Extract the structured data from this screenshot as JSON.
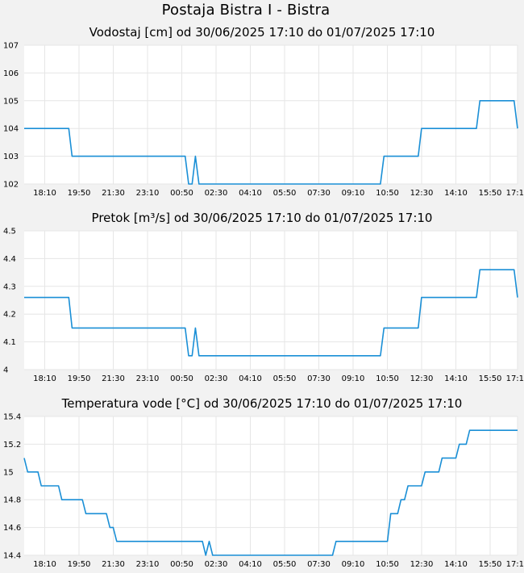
{
  "page": {
    "title": "Postaja Bistra I - Bistra"
  },
  "chart_data": [
    {
      "type": "line",
      "title": "Vodostaj [cm] od 30/06/2025 17:10 do 01/07/2025 17:10",
      "xlabel": "",
      "ylabel": "",
      "xlim": [
        0,
        24
      ],
      "ylim": [
        102,
        107
      ],
      "yticks": [
        "107",
        "106",
        "105",
        "104",
        "103",
        "102"
      ],
      "ytick_values": [
        107,
        106,
        105,
        104,
        103,
        102
      ],
      "xticks": [
        "18:10",
        "19:50",
        "21:30",
        "23:10",
        "00:50",
        "02:30",
        "04:10",
        "05:50",
        "07:30",
        "09:10",
        "10:50",
        "12:30",
        "14:10",
        "15:50",
        "17:10"
      ],
      "xtick_values": [
        1.0,
        2.667,
        4.333,
        6.0,
        7.667,
        9.333,
        11.0,
        12.667,
        14.333,
        16.0,
        17.667,
        19.333,
        21.0,
        22.667,
        24.0
      ],
      "grid": true,
      "color": "#1a8fd6",
      "series": [
        {
          "x": [
            0,
            2.17,
            2.33,
            7.83,
            8.0,
            8.17,
            8.33,
            8.5,
            17.33,
            17.5,
            19.17,
            19.33,
            22.0,
            22.17,
            23.83,
            24.0
          ],
          "y": [
            104,
            104,
            103,
            103,
            102,
            102,
            103,
            102,
            102,
            103,
            103,
            104,
            104,
            105,
            105,
            104
          ]
        }
      ]
    },
    {
      "type": "line",
      "title": "Pretok [m³/s] od 30/06/2025 17:10 do 01/07/2025 17:10",
      "xlabel": "",
      "ylabel": "",
      "xlim": [
        0,
        24
      ],
      "ylim": [
        4.0,
        4.5
      ],
      "yticks": [
        "4.5",
        "4.4",
        "4.3",
        "4.2",
        "4.1",
        "4"
      ],
      "ytick_values": [
        4.5,
        4.4,
        4.3,
        4.2,
        4.1,
        4.0
      ],
      "xticks": [
        "18:10",
        "19:50",
        "21:30",
        "23:10",
        "00:50",
        "02:30",
        "04:10",
        "05:50",
        "07:30",
        "09:10",
        "10:50",
        "12:30",
        "14:10",
        "15:50",
        "17:10"
      ],
      "xtick_values": [
        1.0,
        2.667,
        4.333,
        6.0,
        7.667,
        9.333,
        11.0,
        12.667,
        14.333,
        16.0,
        17.667,
        19.333,
        21.0,
        22.667,
        24.0
      ],
      "grid": true,
      "color": "#1a8fd6",
      "series": [
        {
          "x": [
            0,
            2.17,
            2.33,
            7.83,
            8.0,
            8.17,
            8.33,
            8.5,
            17.33,
            17.5,
            19.17,
            19.33,
            22.0,
            22.17,
            23.83,
            24.0
          ],
          "y": [
            4.26,
            4.26,
            4.15,
            4.15,
            4.05,
            4.05,
            4.15,
            4.05,
            4.05,
            4.15,
            4.15,
            4.26,
            4.26,
            4.36,
            4.36,
            4.26
          ]
        }
      ]
    },
    {
      "type": "line",
      "title": "Temperatura vode [°C] od 30/06/2025 17:10 do 01/07/2025 17:10",
      "xlabel": "",
      "ylabel": "",
      "xlim": [
        0,
        24
      ],
      "ylim": [
        14.4,
        15.4
      ],
      "yticks": [
        "15.4",
        "15.2",
        "15",
        "14.8",
        "14.6",
        "14.4"
      ],
      "ytick_values": [
        15.4,
        15.2,
        15.0,
        14.8,
        14.6,
        14.4
      ],
      "xticks": [
        "18:10",
        "19:50",
        "21:30",
        "23:10",
        "00:50",
        "02:30",
        "04:10",
        "05:50",
        "07:30",
        "09:10",
        "10:50",
        "12:30",
        "14:10",
        "15:50",
        "17:10"
      ],
      "xtick_values": [
        1.0,
        2.667,
        4.333,
        6.0,
        7.667,
        9.333,
        11.0,
        12.667,
        14.333,
        16.0,
        17.667,
        19.333,
        21.0,
        22.667,
        24.0
      ],
      "grid": true,
      "color": "#1a8fd6",
      "series": [
        {
          "x": [
            0,
            0.17,
            0.67,
            0.83,
            1.67,
            1.83,
            2.83,
            3.0,
            4.0,
            4.17,
            4.33,
            4.5,
            4.67,
            4.83,
            8.67,
            8.83,
            9.0,
            9.17,
            15.0,
            15.17,
            17.67,
            17.83,
            18.17,
            18.33,
            18.5,
            18.67,
            19.33,
            19.5,
            20.17,
            20.33,
            21.0,
            21.17,
            21.5,
            21.67,
            22.0,
            22.17,
            24.0
          ],
          "y": [
            15.1,
            15.0,
            15.0,
            14.9,
            14.9,
            14.8,
            14.8,
            14.7,
            14.7,
            14.6,
            14.6,
            14.5,
            14.5,
            14.5,
            14.5,
            14.4,
            14.5,
            14.4,
            14.4,
            14.5,
            14.5,
            14.7,
            14.7,
            14.8,
            14.8,
            14.9,
            14.9,
            15.0,
            15.0,
            15.1,
            15.1,
            15.2,
            15.2,
            15.3,
            15.3,
            15.3,
            15.3
          ]
        }
      ]
    }
  ]
}
